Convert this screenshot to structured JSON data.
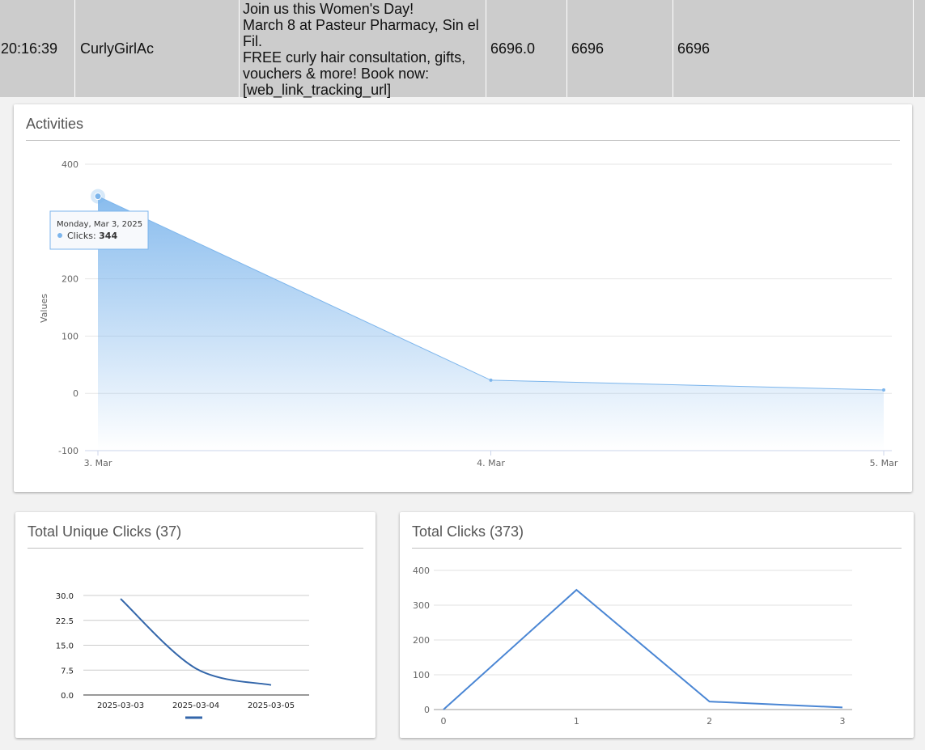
{
  "table_row": {
    "time": "20:16:39",
    "account": "CurlyGirlAc",
    "message_lines": [
      "Join us this Women's Day!",
      "March 8 at Pasteur Pharmacy, Sin el",
      "Fil.",
      "FREE curly hair consultation, gifts,",
      "vouchers & more! Book now:",
      "[web_link_tracking_url]"
    ],
    "value1": "6696.0",
    "value2": "6696",
    "value3": "6696"
  },
  "activities": {
    "title": "Activities",
    "tooltip": {
      "date": "Monday, Mar 3, 2025",
      "series": "Clicks",
      "value": "344"
    },
    "chart_data": {
      "type": "area",
      "ylabel": "Values",
      "xlabel": "",
      "categories": [
        "3. Mar",
        "4. Mar",
        "5. Mar"
      ],
      "series": [
        {
          "name": "Clicks",
          "values": [
            344,
            23,
            6
          ]
        }
      ],
      "ylim": [
        -100,
        400
      ],
      "yticks": [
        "400",
        "200",
        "100",
        "0",
        "-100"
      ],
      "grid": true,
      "color": "#7cb5ec"
    }
  },
  "unique_clicks": {
    "title": "Total Unique Clicks (37)",
    "chart_data": {
      "type": "line",
      "categories": [
        "2025-03-03",
        "2025-03-04",
        "2025-03-05"
      ],
      "series": [
        {
          "values": [
            29,
            8,
            3
          ]
        }
      ],
      "ylim": [
        0,
        30
      ],
      "yticks": [
        "30.0",
        "22.5",
        "15.0",
        "7.5",
        "0.0"
      ],
      "grid": true,
      "legend": "bottom",
      "color": "#3366aa"
    }
  },
  "total_clicks": {
    "title": "Total Clicks (373)",
    "chart_data": {
      "type": "line",
      "categories": [
        "0",
        "1",
        "2",
        "3"
      ],
      "series": [
        {
          "values": [
            0,
            344,
            23,
            6
          ]
        }
      ],
      "ylim": [
        0,
        400
      ],
      "yticks": [
        "400",
        "300",
        "200",
        "100",
        "0"
      ],
      "grid": true,
      "color": "#4a86d4"
    }
  }
}
